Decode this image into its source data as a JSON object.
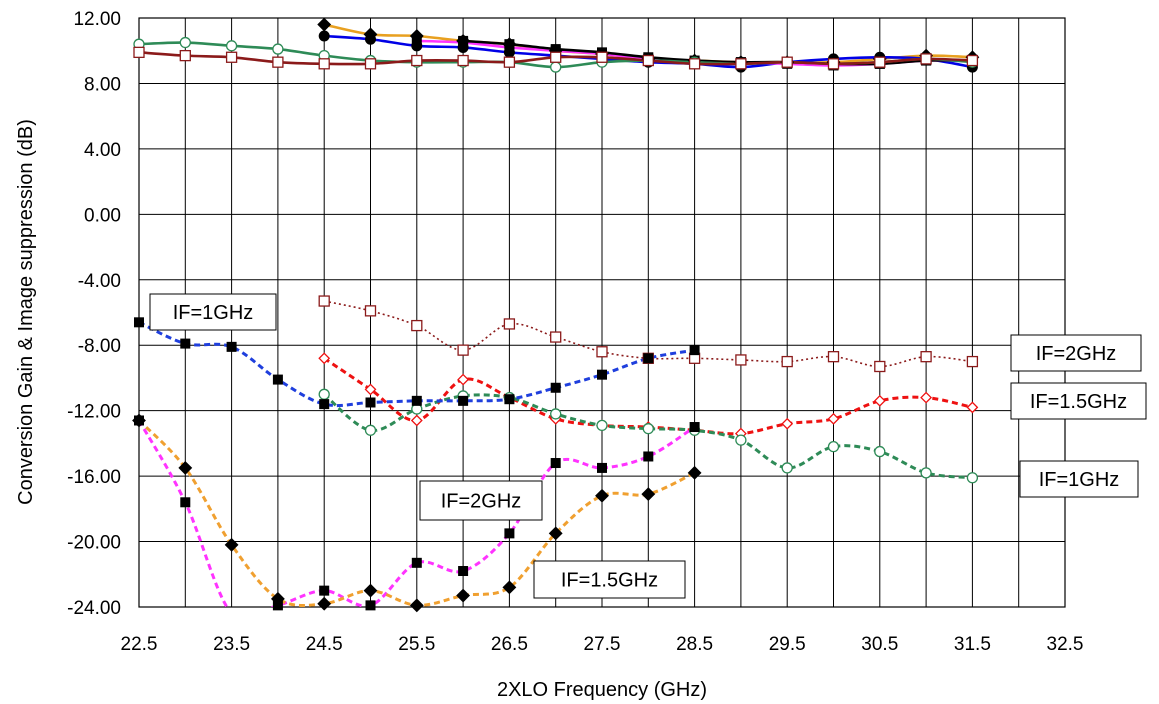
{
  "chart_data": {
    "type": "line",
    "xlabel": "2XLO  Frequency (GHz)",
    "ylabel": "Conversion Gain & Image suppression (dB)",
    "xlim": [
      22.5,
      32.5
    ],
    "ylim": [
      -24,
      12
    ],
    "grid": true,
    "x_ticks": [
      "22.5",
      "23.5",
      "24.5",
      "25.5",
      "26.5",
      "27.5",
      "28.5",
      "29.5",
      "30.5",
      "31.5",
      "32.5"
    ],
    "y_ticks": [
      "12.00",
      "8.00",
      "4.00",
      "0.00",
      "-4.00",
      "-8.00",
      "-12.00",
      "-16.00",
      "-20.00",
      "-24.00"
    ],
    "series": [
      {
        "color": "#e8a020",
        "style": "solid",
        "marker": "diamond-filled",
        "x": [
          24.5,
          25,
          25.5,
          26,
          26.5,
          27,
          27.5,
          28,
          28.5,
          29,
          29.5,
          30,
          30.5,
          31,
          31.5
        ],
        "y": [
          11.6,
          11.0,
          10.9,
          10.6,
          10.4,
          10.0,
          9.8,
          9.5,
          9.4,
          9.3,
          9.3,
          9.3,
          9.5,
          9.7,
          9.6
        ]
      },
      {
        "color": "#0000e6",
        "style": "solid",
        "marker": "circle-filled",
        "x": [
          24.5,
          25,
          25.5,
          26,
          26.5,
          27,
          27.5,
          28,
          28.5,
          29,
          29.5,
          30,
          30.5,
          31,
          31.5
        ],
        "y": [
          10.9,
          10.7,
          10.3,
          10.2,
          9.9,
          9.7,
          9.5,
          9.3,
          9.2,
          9.0,
          9.3,
          9.5,
          9.6,
          9.5,
          9.0
        ]
      },
      {
        "color": "#ff33ff",
        "style": "solid",
        "marker": "square-filled",
        "x": [
          25.5,
          26,
          26.5,
          27,
          27.5,
          28,
          28.5,
          29,
          29.5,
          30,
          30.5,
          31,
          31.5
        ],
        "y": [
          10.6,
          10.5,
          10.2,
          10.0,
          9.8,
          9.5,
          9.3,
          9.3,
          9.2,
          9.1,
          9.2,
          9.4,
          9.4
        ]
      },
      {
        "color": "#000000",
        "style": "solid",
        "marker": "square-filled",
        "x": [
          26,
          26.5,
          27,
          27.5,
          28,
          28.5,
          29,
          29.5,
          30,
          30.5,
          31,
          31.5
        ],
        "y": [
          10.6,
          10.4,
          10.1,
          9.9,
          9.6,
          9.4,
          9.3,
          9.3,
          9.2,
          9.2,
          9.4,
          9.4
        ]
      },
      {
        "color": "#2e8b57",
        "style": "solid",
        "marker": "circle-open",
        "x": [
          22.5,
          23,
          23.5,
          24,
          24.5,
          25,
          25.5,
          26,
          26.5,
          27,
          27.5,
          28,
          28.5,
          29,
          29.5,
          30,
          30.5,
          31,
          31.5
        ],
        "y": [
          10.4,
          10.5,
          10.3,
          10.1,
          9.7,
          9.4,
          9.3,
          9.3,
          9.3,
          9.0,
          9.3,
          9.4,
          9.3,
          9.2,
          9.3,
          9.2,
          9.3,
          9.5,
          9.3
        ]
      },
      {
        "color": "#8b1a1a",
        "style": "solid",
        "marker": "square-open",
        "x": [
          22.5,
          23,
          23.5,
          24,
          24.5,
          25,
          25.5,
          26,
          26.5,
          27,
          27.5,
          28,
          28.5,
          29,
          29.5,
          30,
          30.5,
          31,
          31.5
        ],
        "y": [
          9.9,
          9.7,
          9.6,
          9.3,
          9.2,
          9.2,
          9.4,
          9.4,
          9.3,
          9.6,
          9.6,
          9.4,
          9.2,
          9.2,
          9.3,
          9.2,
          9.3,
          9.5,
          9.4
        ]
      },
      {
        "color": "#8b1a1a",
        "style": "dotted",
        "marker": "square-open",
        "x": [
          24.5,
          25,
          25.5,
          26,
          26.5,
          27,
          27.5,
          28,
          28.5,
          29,
          29.5,
          30,
          30.5,
          31,
          31.5
        ],
        "y": [
          -5.3,
          -5.9,
          -6.8,
          -8.3,
          -6.7,
          -7.5,
          -8.4,
          -8.8,
          -8.8,
          -8.9,
          -9.0,
          -8.7,
          -9.3,
          -8.7,
          -9.0
        ]
      },
      {
        "color": "#ee1111",
        "style": "dashed",
        "marker": "diamond-open",
        "x": [
          24.5,
          25,
          25.5,
          26,
          26.5,
          27,
          27.5,
          28,
          28.5,
          29,
          29.5,
          30,
          30.5,
          31,
          31.5
        ],
        "y": [
          -8.8,
          -10.7,
          -12.6,
          -10.1,
          -11.2,
          -12.5,
          -12.9,
          -13.0,
          -13.2,
          -13.4,
          -12.8,
          -12.5,
          -11.4,
          -11.2,
          -11.8
        ]
      },
      {
        "color": "#2e8b57",
        "style": "dashed",
        "marker": "circle-open",
        "x": [
          24.5,
          25,
          25.5,
          26,
          26.5,
          27,
          27.5,
          28,
          28.5,
          29,
          29.5,
          30,
          30.5,
          31,
          31.5
        ],
        "y": [
          -11.0,
          -13.2,
          -11.9,
          -11.1,
          -11.2,
          -12.2,
          -12.9,
          -13.1,
          -13.2,
          -13.8,
          -15.5,
          -14.2,
          -14.5,
          -15.8,
          -16.1
        ]
      },
      {
        "color": "#1f3fdd",
        "style": "dashed",
        "marker": "square-filled",
        "x": [
          22.5,
          23,
          23.5,
          24,
          24.5,
          25,
          25.5,
          26,
          26.5,
          27,
          27.5,
          28,
          28.5
        ],
        "y": [
          -6.6,
          -7.9,
          -8.1,
          -10.1,
          -11.6,
          -11.5,
          -11.4,
          -11.4,
          -11.3,
          -10.6,
          -9.8,
          -8.8,
          -8.3
        ]
      },
      {
        "color": "#ff33ff",
        "style": "dashed",
        "marker": "square-filled",
        "x": [
          22.5,
          23,
          23.5,
          24,
          24.5,
          25,
          25.5,
          26,
          26.5,
          27,
          27.5,
          28,
          28.5
        ],
        "y": [
          -12.6,
          -17.6,
          -24.4,
          -23.9,
          -23.0,
          -23.9,
          -21.3,
          -21.8,
          -19.5,
          -15.2,
          -15.5,
          -14.8,
          -13.0
        ]
      },
      {
        "color": "#f0a030",
        "style": "dashed",
        "marker": "diamond-filled",
        "x": [
          22.5,
          23,
          23.5,
          24,
          24.5,
          25,
          25.5,
          26,
          26.5,
          27,
          27.5,
          28,
          28.5
        ],
        "y": [
          -12.6,
          -15.5,
          -20.2,
          -23.5,
          -23.8,
          -23.0,
          -23.9,
          -23.3,
          -22.8,
          -19.5,
          -17.2,
          -17.1,
          -15.8
        ]
      }
    ],
    "annotations": [
      {
        "text": "IF=1GHz"
      },
      {
        "text": "IF=2GHz"
      },
      {
        "text": "IF=1.5GHz"
      },
      {
        "text": "IF=1GHz"
      },
      {
        "text": "IF=2GHz"
      },
      {
        "text": "IF=1.5GHz"
      }
    ]
  }
}
